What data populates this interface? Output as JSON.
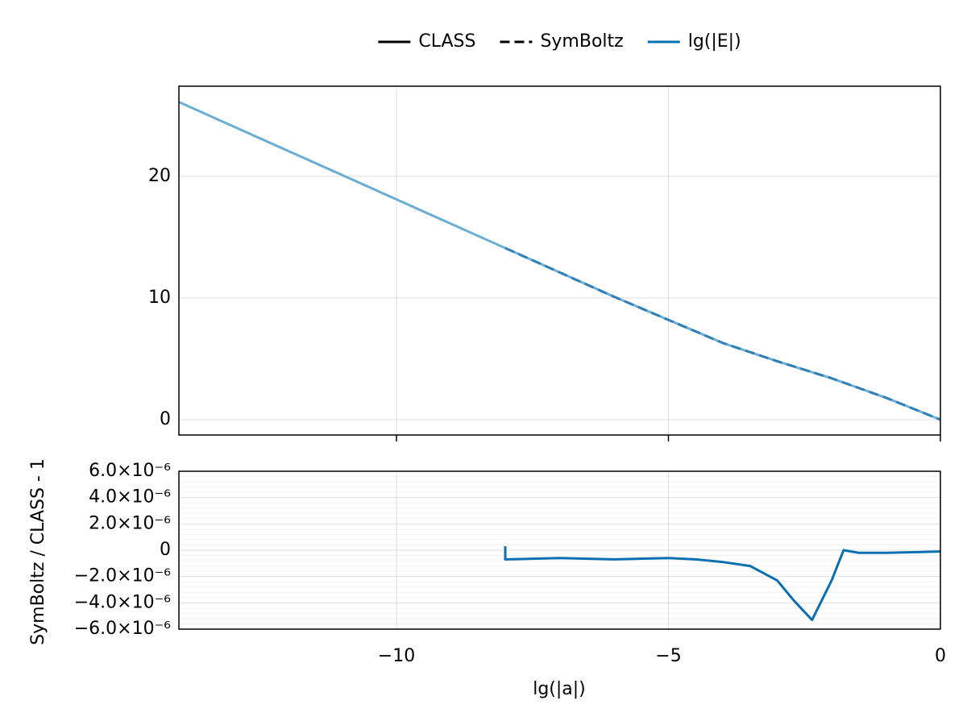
{
  "chart_data": [
    {
      "type": "line",
      "legend": [
        {
          "label": "CLASS",
          "color": "#000000",
          "dash": false
        },
        {
          "label": "SymBoltz",
          "color": "#000000",
          "dash": true
        },
        {
          "label": "lg(|E|)",
          "color": "#0072b2",
          "dash": false
        }
      ],
      "x": [
        -14,
        -13,
        -12,
        -11,
        -10,
        -9,
        -8,
        -7,
        -6,
        -5,
        -4,
        -3,
        -2,
        -1,
        0
      ],
      "series": [
        {
          "color": "#6aaed6",
          "dash": false,
          "values": [
            26.1,
            24.1,
            22.1,
            20.1,
            18.1,
            16.1,
            14.1,
            12.1,
            10.1,
            8.2,
            6.3,
            4.8,
            3.4,
            1.8,
            0
          ]
        },
        {
          "color": "#2f7fb8",
          "dash": true,
          "values": [
            null,
            null,
            null,
            null,
            null,
            null,
            14.1,
            12.1,
            10.1,
            8.2,
            6.3,
            4.8,
            3.4,
            1.8,
            0
          ]
        }
      ],
      "xlim": [
        -14,
        0
      ],
      "xticks": [
        -10,
        -5,
        0
      ],
      "ylim": [
        -1.26,
        27.4
      ],
      "yticks": [
        0,
        10,
        20
      ],
      "grid": true
    },
    {
      "type": "line",
      "xlabel": "lg(|a|)",
      "ylabel": "SymBoltz / CLASS - 1",
      "x": [
        -8,
        -8,
        -7,
        -6,
        -5,
        -4.5,
        -4,
        -3.5,
        -3,
        -2.7,
        -2.36,
        -2,
        -1.78,
        -1.5,
        -1,
        0
      ],
      "series": [
        {
          "color": "#0a6fb0",
          "dash": false,
          "values": [
            3e-07,
            -7e-07,
            -6e-07,
            -7e-07,
            -6e-07,
            -7e-07,
            -9e-07,
            -1.2e-06,
            -2.3e-06,
            -3.8e-06,
            -5.3e-06,
            -2.3e-06,
            0,
            -2e-07,
            -2e-07,
            -1e-07
          ]
        }
      ],
      "xlim": [
        -14,
        0
      ],
      "xticks": [
        {
          "value": -10,
          "label": "−10"
        },
        {
          "value": -5,
          "label": "−5"
        },
        0
      ],
      "ylim": [
        -6e-06,
        6e-06
      ],
      "yticks": [
        {
          "value": -6e-06,
          "label": "−6.0×10⁻⁶"
        },
        {
          "value": -4e-06,
          "label": "−4.0×10⁻⁶"
        },
        {
          "value": -2e-06,
          "label": "−2.0×10⁻⁶"
        },
        0,
        {
          "value": 2e-06,
          "label": "2.0×10⁻⁶"
        },
        {
          "value": 4e-06,
          "label": "4.0×10⁻⁶"
        },
        {
          "value": 6e-06,
          "label": "6.0×10⁻⁶"
        }
      ],
      "grid": true,
      "minor_grid": true
    }
  ]
}
